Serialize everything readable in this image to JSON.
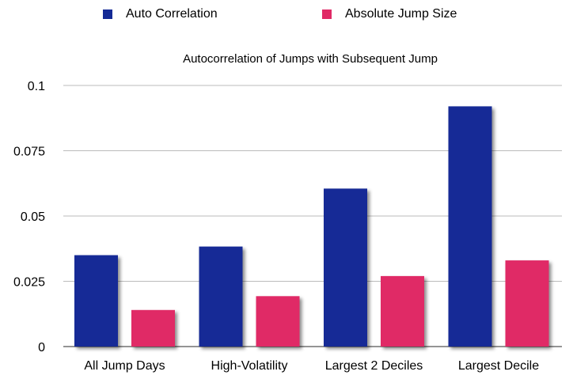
{
  "chart_data": {
    "type": "bar",
    "title": "Autocorrelation of Jumps with Subsequent Jump",
    "xlabel": "",
    "ylabel": "",
    "categories": [
      "All Jump Days",
      "High-Volatility",
      "Largest 2 Deciles",
      "Largest Decile"
    ],
    "series": [
      {
        "name": "Auto Correlation",
        "color": "#142a96",
        "values": [
          0.035,
          0.0383,
          0.0605,
          0.092
        ]
      },
      {
        "name": "Absolute Jump Size",
        "color": "#e02a66",
        "values": [
          0.014,
          0.0193,
          0.027,
          0.033
        ]
      }
    ],
    "ylim": [
      0,
      0.1
    ],
    "yticks": [
      0,
      0.025,
      0.05,
      0.075,
      0.1
    ],
    "ytick_labels": [
      "0",
      "0.025",
      "0.05",
      "0.075",
      "0.1"
    ],
    "grid": true,
    "legend": "top"
  }
}
